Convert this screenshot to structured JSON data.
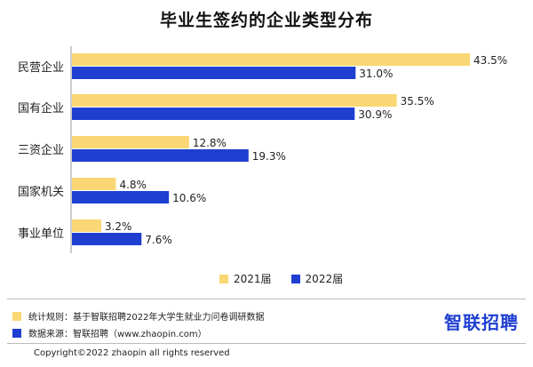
{
  "header": {
    "title": "毕业生签约的企业类型分布"
  },
  "chart_data": {
    "type": "bar",
    "orientation": "horizontal",
    "categories": [
      "民营企业",
      "国有企业",
      "三资企业",
      "国家机关",
      "事业单位"
    ],
    "series": [
      {
        "name": "2021届",
        "values": [
          43.5,
          35.5,
          12.8,
          4.8,
          3.2
        ],
        "labels": [
          "43.5%",
          "35.5%",
          "12.8%",
          "4.8%",
          "3.2%"
        ],
        "color": "#fad774"
      },
      {
        "name": "2022届",
        "values": [
          31.0,
          30.9,
          19.3,
          10.6,
          7.6
        ],
        "labels": [
          "31.0%",
          "30.9%",
          "19.3%",
          "10.6%",
          "7.6%"
        ],
        "color": "#1f3fd1"
      }
    ],
    "xlim": [
      0,
      50
    ],
    "grid": false,
    "legend_position": "bottom"
  },
  "legend": {
    "series1": "2021届",
    "series2": "2022届"
  },
  "footer": {
    "note1": "统计规则：基于智联招聘2022年大学生就业力问卷调研数据",
    "note2": "数据来源：智联招聘（www.zhaopin.com）",
    "brand": "智联招聘",
    "copyright": "Copyright©2022 zhaopin all rights reserved"
  },
  "colors": {
    "series1": "#fad774",
    "series2": "#1f3fd1",
    "brand": "#1f3fd1"
  }
}
